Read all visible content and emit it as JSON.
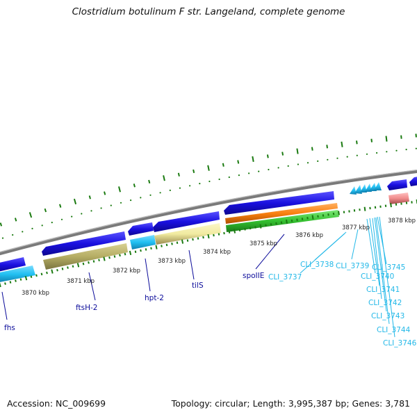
{
  "title": "Clostridium botulinum F str. Langeland, complete genome",
  "footer": {
    "accession": "Accession: NC_009699",
    "summary": "Topology: circular; Length: 3,995,387 bp; Genes: 3,781"
  },
  "colors": {
    "cds": "#1a10e0",
    "cds_light": "#22c0f2",
    "khaki": "#b5ad64",
    "pale_yellow": "#f1eba0",
    "orange": "#f98010",
    "green": "#35c030",
    "rrna": "#f08c8c",
    "backbone": "#7a7a7a",
    "tick": "#1a7a10",
    "label_blue": "#0b0b9a",
    "label_cyan": "#22b8e8"
  },
  "scale_labels": [
    "3870 kbp",
    "3871 kbp",
    "3872 kbp",
    "3873 kbp",
    "3874 kbp",
    "3875 kbp",
    "3876 kbp",
    "3877 kbp",
    "3878 kbp"
  ],
  "gene_labels": [
    "fhs",
    "ftsH-2",
    "hpt-2",
    "tilS",
    "spoIIE",
    "CLI_3737",
    "CLI_3738",
    "CLI_3739",
    "CLI_3740",
    "CLI_3741",
    "CLI_3742",
    "CLI_3743",
    "CLI_3744",
    "CLI_3745",
    "CLI_3746"
  ]
}
